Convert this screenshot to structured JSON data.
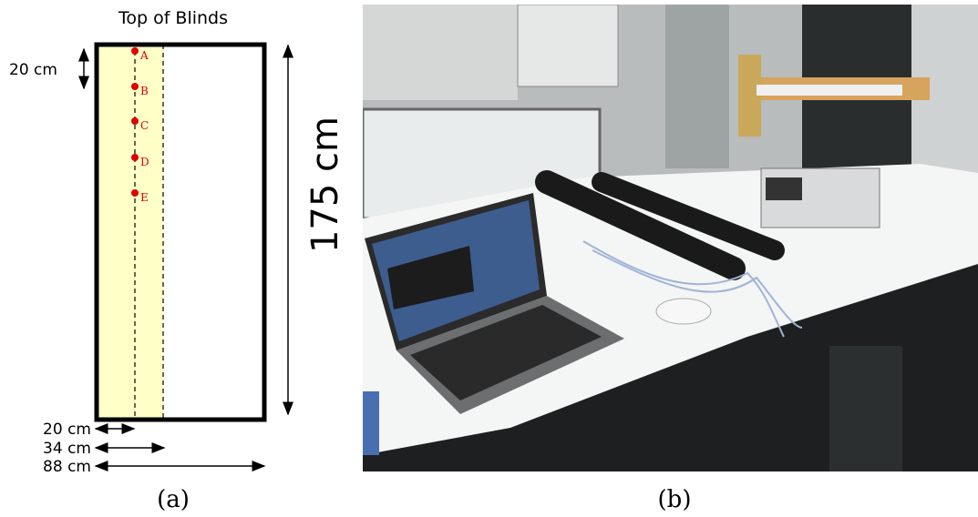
{
  "diagram": {
    "title": "Top of Blinds",
    "side_label": "20 cm",
    "height_label": "175 cm",
    "bottom_labels": [
      "20 cm",
      "34 cm",
      "88 cm"
    ],
    "points": [
      "A",
      "B",
      "C",
      "D",
      "E"
    ]
  },
  "captions": [
    "(a)",
    "(b)"
  ]
}
